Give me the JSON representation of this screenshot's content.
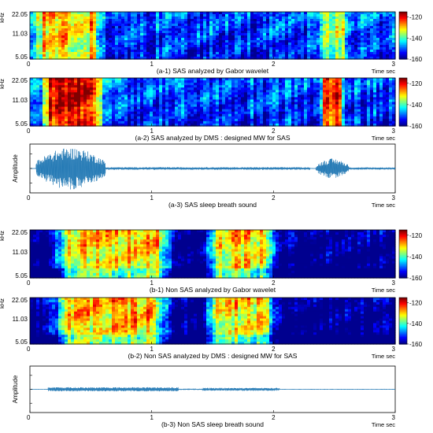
{
  "figure_name": "",
  "colormap": [
    "#00008f",
    "#0000ff",
    "#007fff",
    "#00ffff",
    "#7fff7f",
    "#ffff00",
    "#ff7f00",
    "#ff0000",
    "#7f0000"
  ],
  "chart_data": [
    {
      "id": "a1",
      "type": "heatmap",
      "caption": "(a-1) SAS analyzed by Gabor wavelet",
      "xlabel": "Time sec",
      "ylabel": "kHz",
      "xlim": [
        0,
        3
      ],
      "x_ticks": [
        "0",
        "1",
        "2",
        "3"
      ],
      "y_ticks": [
        "22.05",
        "11.03",
        "5.05"
      ],
      "colorbar": {
        "ticks": [
          "-120",
          "-140",
          "-160"
        ],
        "range": [
          -160,
          -115
        ]
      },
      "bursts": [
        {
          "start": 0.0,
          "end": 0.62,
          "level_db": -128
        },
        {
          "start": 2.35,
          "end": 2.62,
          "level_db": -135
        }
      ],
      "background_db": -150
    },
    {
      "id": "a2",
      "type": "heatmap",
      "caption": "(a-2) SAS analyzed by DMS : designed MW for SAS",
      "xlabel": "Time sec",
      "ylabel": "kHz",
      "xlim": [
        0,
        3
      ],
      "x_ticks": [
        "0",
        "1",
        "2",
        "3"
      ],
      "y_ticks": [
        "22.05",
        "11.03",
        "5.05"
      ],
      "colorbar": {
        "ticks": [
          "-120",
          "-140",
          "-160"
        ],
        "range": [
          -160,
          -115
        ]
      },
      "bursts": [
        {
          "start": 0.08,
          "end": 0.62,
          "level_db": -118
        },
        {
          "start": 2.38,
          "end": 2.58,
          "level_db": -120
        }
      ],
      "background_db": -150
    },
    {
      "id": "a3",
      "type": "line",
      "caption": "(a-3) SAS sleep breath sound",
      "xlabel": "Time sec",
      "ylabel": "Amplitude",
      "xlim": [
        0,
        3
      ],
      "x_ticks": [
        "0",
        "1",
        "2",
        "3"
      ],
      "envelope": [
        {
          "start": 0.05,
          "end": 0.62,
          "amplitude": 0.95
        },
        {
          "start": 0.62,
          "end": 2.3,
          "amplitude": 0.06
        },
        {
          "start": 2.35,
          "end": 2.62,
          "amplitude": 0.45
        },
        {
          "start": 2.62,
          "end": 3.0,
          "amplitude": 0.05
        }
      ]
    },
    {
      "id": "b1",
      "type": "heatmap",
      "caption": "(b-1) Non SAS analyzed by Gabor wavelet",
      "xlabel": "Time sec",
      "ylabel": "kHz",
      "xlim": [
        0,
        3
      ],
      "x_ticks": [
        "0",
        "1",
        "2",
        "3"
      ],
      "y_ticks": [
        "22.05",
        "11.03",
        "5.05"
      ],
      "colorbar": {
        "ticks": [
          "-120",
          "-140",
          "-160"
        ],
        "range": [
          -160,
          -115
        ]
      },
      "bursts": [
        {
          "start": 0.15,
          "end": 1.23,
          "level_db": -128
        },
        {
          "start": 1.42,
          "end": 2.05,
          "level_db": -130
        }
      ],
      "background_db": -160
    },
    {
      "id": "b2",
      "type": "heatmap",
      "caption": "(b-2) Non SAS analyzed by DMS : designed MW for SAS",
      "xlabel": "Time sec",
      "ylabel": "kHz",
      "xlim": [
        0,
        3
      ],
      "x_ticks": [
        "0",
        "1",
        "2",
        "3"
      ],
      "y_ticks": [
        "22.05",
        "11.03",
        "5.05"
      ],
      "colorbar": {
        "ticks": [
          "-120",
          "-140",
          "-160"
        ],
        "range": [
          -160,
          -115
        ]
      },
      "bursts": [
        {
          "start": 0.15,
          "end": 1.2,
          "level_db": -127
        },
        {
          "start": 1.42,
          "end": 2.05,
          "level_db": -129
        }
      ],
      "background_db": -160
    },
    {
      "id": "b3",
      "type": "line",
      "caption": "(b-3) Non SAS sleep breath sound",
      "xlabel": "Time sec",
      "ylabel": "Amplitude",
      "xlim": [
        0,
        3
      ],
      "x_ticks": [
        "0",
        "1",
        "2",
        "3"
      ],
      "envelope": [
        {
          "start": 0.0,
          "end": 0.15,
          "amplitude": 0.02
        },
        {
          "start": 0.15,
          "end": 1.22,
          "amplitude": 0.1
        },
        {
          "start": 1.22,
          "end": 1.42,
          "amplitude": 0.03
        },
        {
          "start": 1.42,
          "end": 2.05,
          "amplitude": 0.07
        },
        {
          "start": 2.05,
          "end": 3.0,
          "amplitude": 0.02
        }
      ]
    }
  ]
}
